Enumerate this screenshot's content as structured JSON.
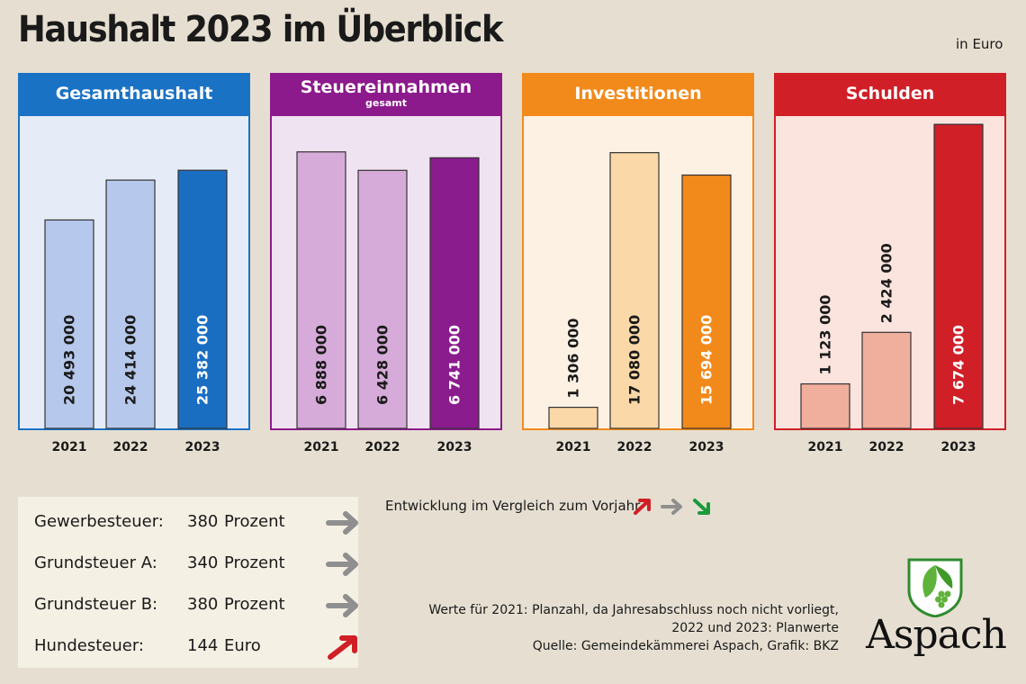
{
  "title": "Haushalt 2023 im Überblick",
  "unit_note": "in Euro",
  "chart_data": [
    {
      "type": "bar",
      "title": "Gesamthaushalt",
      "subtitle": "",
      "categories": [
        "2021",
        "2022",
        "2023"
      ],
      "values": [
        20493000,
        24414000,
        25382000
      ],
      "labels": [
        "20 493 000",
        "24 414 000",
        "25 382 000"
      ],
      "ylim": [
        0,
        30000000
      ],
      "colors": {
        "header": "#1a72c4",
        "border": "#1a72c4",
        "bg": "#e5ecf7",
        "bar_light": "#b6c8eb",
        "bar_dark": "#1a6ec2"
      }
    },
    {
      "type": "bar",
      "title": "Steuereinnahmen",
      "subtitle": "gesamt",
      "categories": [
        "2021",
        "2022",
        "2023"
      ],
      "values": [
        6888000,
        6428000,
        6741000
      ],
      "labels": [
        "6 888 000",
        "6 428 000",
        "6 741 000"
      ],
      "ylim": [
        0,
        7600000
      ],
      "colors": {
        "header": "#8c1a8c",
        "border": "#8c1a8c",
        "bg": "#f0e3f1",
        "bar_light": "#d6abd9",
        "bar_dark": "#8b1c8e"
      }
    },
    {
      "type": "bar",
      "title": "Investitionen",
      "subtitle": "",
      "categories": [
        "2021",
        "2022",
        "2023"
      ],
      "values": [
        1306000,
        17080000,
        15694000
      ],
      "labels": [
        "1 306 000",
        "17 080 000",
        "15 694 000"
      ],
      "ylim": [
        0,
        18900000
      ],
      "colors": {
        "header": "#f28a1b",
        "border": "#f28a1b",
        "bg": "#fdf1e4",
        "bar_light": "#fbd8a8",
        "bar_dark": "#f28a1b"
      }
    },
    {
      "type": "bar",
      "title": "Schulden",
      "subtitle": "",
      "categories": [
        "2021",
        "2022",
        "2023"
      ],
      "values": [
        1123000,
        2424000,
        7674000
      ],
      "labels": [
        "1 123 000",
        "2 424 000",
        "7 674 000"
      ],
      "ylim": [
        0,
        7700000
      ],
      "colors": {
        "header": "#d01f27",
        "border": "#d01f27",
        "bg": "#fbe4de",
        "bar_light": "#f0ae9c",
        "bar_dark": "#d01f27"
      }
    }
  ],
  "taxes": [
    {
      "name": "Gewerbesteuer:",
      "value": "380",
      "unit": "Prozent",
      "trend": "flat"
    },
    {
      "name": "Grundsteuer A:",
      "value": "340",
      "unit": "Prozent",
      "trend": "flat"
    },
    {
      "name": "Grundsteuer B:",
      "value": "380",
      "unit": "Prozent",
      "trend": "flat"
    },
    {
      "name": "Hundesteuer:",
      "value": "144",
      "unit": "Euro",
      "trend": "up"
    }
  ],
  "legend": {
    "text": "Entwicklung im Vergleich zum Vorjahr",
    "arrows": [
      "up-arrow-icon",
      "flat-arrow-icon",
      "down-arrow-icon"
    ]
  },
  "notes": [
    "Werte für 2021: Planzahl, da Jahresabschluss noch nicht vorliegt,",
    "2022 und 2023: Planwerte",
    "Quelle: Gemeindekämmerei Aspach, Grafik: BKZ"
  ],
  "logo": {
    "text": "Aspach"
  },
  "arrow_colors": {
    "up": "#d01f27",
    "flat": "#8f8f8f",
    "down": "#1a9a3a"
  }
}
